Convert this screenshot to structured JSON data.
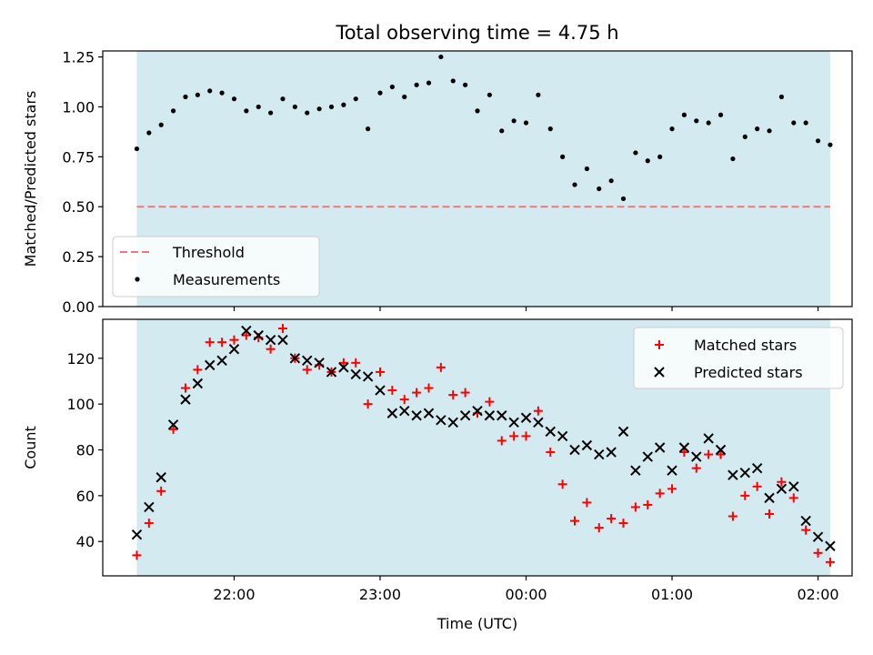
{
  "figure": {
    "title": "Total observing time = 4.75 h",
    "xlabel": "Time (UTC)"
  },
  "chart_data": [
    {
      "type": "scatter",
      "ylabel": "Matched/Predicted stars",
      "ylim": [
        0,
        1.28
      ],
      "yticks": [
        "0.00",
        "0.25",
        "0.50",
        "0.75",
        "1.00",
        "1.25"
      ],
      "xticks": [],
      "observing_window": {
        "start_min": 1280,
        "end_min": 1565,
        "color": "#d3eaf0"
      },
      "threshold": {
        "name": "Threshold",
        "value": 0.5,
        "color": "#f07878",
        "style": "dashed"
      },
      "series": [
        {
          "name": "Measurements",
          "color": "#000000",
          "x_min": [
            1280,
            1285,
            1290,
            1295,
            1300,
            1305,
            1310,
            1315,
            1320,
            1325,
            1330,
            1335,
            1340,
            1345,
            1350,
            1355,
            1360,
            1365,
            1370,
            1375,
            1380,
            1385,
            1390,
            1395,
            1400,
            1405,
            1410,
            1415,
            1420,
            1425,
            1430,
            1435,
            1440,
            1445,
            1450,
            1455,
            1460,
            1465,
            1470,
            1475,
            1480,
            1485,
            1490,
            1495,
            1500,
            1505,
            1510,
            1515,
            1520,
            1525,
            1530,
            1535,
            1540,
            1545,
            1550,
            1555,
            1560,
            1565
          ],
          "values": [
            0.79,
            0.87,
            0.91,
            0.98,
            1.05,
            1.06,
            1.08,
            1.07,
            1.04,
            0.98,
            1.0,
            0.97,
            1.04,
            1.0,
            0.97,
            0.99,
            1.0,
            1.01,
            1.04,
            0.89,
            1.07,
            1.1,
            1.05,
            1.11,
            1.12,
            1.25,
            1.13,
            1.11,
            0.98,
            1.06,
            0.88,
            0.93,
            0.92,
            1.06,
            0.89,
            0.75,
            0.61,
            0.69,
            0.59,
            0.63,
            0.54,
            0.77,
            0.73,
            0.75,
            0.89,
            0.96,
            0.93,
            0.92,
            0.96,
            0.74,
            0.85,
            0.89,
            0.88,
            1.05,
            0.92,
            0.92,
            0.83,
            0.81
          ]
        }
      ],
      "legend": {
        "placement": "lower-left",
        "entries": [
          "Threshold",
          "Measurements"
        ]
      }
    },
    {
      "type": "scatter",
      "ylabel": "Count",
      "ylim": [
        25,
        137
      ],
      "yticks": [
        "40",
        "60",
        "80",
        "100",
        "120"
      ],
      "xticks": [
        "22:00",
        "23:00",
        "00:00",
        "01:00",
        "02:00"
      ],
      "xtick_values_min": [
        1320,
        1380,
        1440,
        1500,
        1560
      ],
      "xlim_min": [
        1266,
        1574
      ],
      "observing_window": {
        "start_min": 1280,
        "end_min": 1565,
        "color": "#d3eaf0"
      },
      "series": [
        {
          "name": "Matched stars",
          "marker": "plus",
          "color": "#ff0000",
          "x_min": [
            1280,
            1285,
            1290,
            1295,
            1300,
            1305,
            1310,
            1315,
            1320,
            1325,
            1330,
            1335,
            1340,
            1345,
            1350,
            1355,
            1360,
            1365,
            1370,
            1375,
            1380,
            1385,
            1390,
            1395,
            1400,
            1405,
            1410,
            1415,
            1420,
            1425,
            1430,
            1435,
            1440,
            1445,
            1450,
            1455,
            1460,
            1465,
            1470,
            1475,
            1480,
            1485,
            1490,
            1495,
            1500,
            1505,
            1510,
            1515,
            1520,
            1525,
            1530,
            1535,
            1540,
            1545,
            1550,
            1555,
            1560,
            1565
          ],
          "values": [
            34,
            48,
            62,
            89,
            107,
            115,
            127,
            127,
            128,
            130,
            129,
            124,
            133,
            120,
            115,
            117,
            114,
            118,
            118,
            100,
            114,
            106,
            102,
            105,
            107,
            116,
            104,
            105,
            96,
            101,
            84,
            86,
            86,
            97,
            79,
            65,
            49,
            57,
            46,
            50,
            48,
            55,
            56,
            61,
            63,
            79,
            72,
            78,
            78,
            51,
            60,
            64,
            52,
            66,
            59,
            45,
            35,
            31
          ]
        },
        {
          "name": "Predicted stars",
          "marker": "x",
          "color": "#000000",
          "x_min": [
            1280,
            1285,
            1290,
            1295,
            1300,
            1305,
            1310,
            1315,
            1320,
            1325,
            1330,
            1335,
            1340,
            1345,
            1350,
            1355,
            1360,
            1365,
            1370,
            1375,
            1380,
            1385,
            1390,
            1395,
            1400,
            1405,
            1410,
            1415,
            1420,
            1425,
            1430,
            1435,
            1440,
            1445,
            1450,
            1455,
            1460,
            1465,
            1470,
            1475,
            1480,
            1485,
            1490,
            1495,
            1500,
            1505,
            1510,
            1515,
            1520,
            1525,
            1530,
            1535,
            1540,
            1545,
            1550,
            1555,
            1560,
            1565
          ],
          "values": [
            43,
            55,
            68,
            91,
            102,
            109,
            117,
            119,
            124,
            132,
            130,
            128,
            128,
            120,
            119,
            118,
            114,
            116,
            113,
            112,
            106,
            96,
            97,
            95,
            96,
            93,
            92,
            95,
            97,
            95,
            95,
            92,
            94,
            92,
            88,
            86,
            80,
            82,
            78,
            79,
            88,
            71,
            77,
            81,
            71,
            81,
            77,
            85,
            80,
            69,
            70,
            72,
            59,
            63,
            64,
            49,
            42,
            38
          ]
        }
      ],
      "legend": {
        "placement": "upper-right",
        "entries": [
          "Matched stars",
          "Predicted stars"
        ]
      }
    }
  ]
}
